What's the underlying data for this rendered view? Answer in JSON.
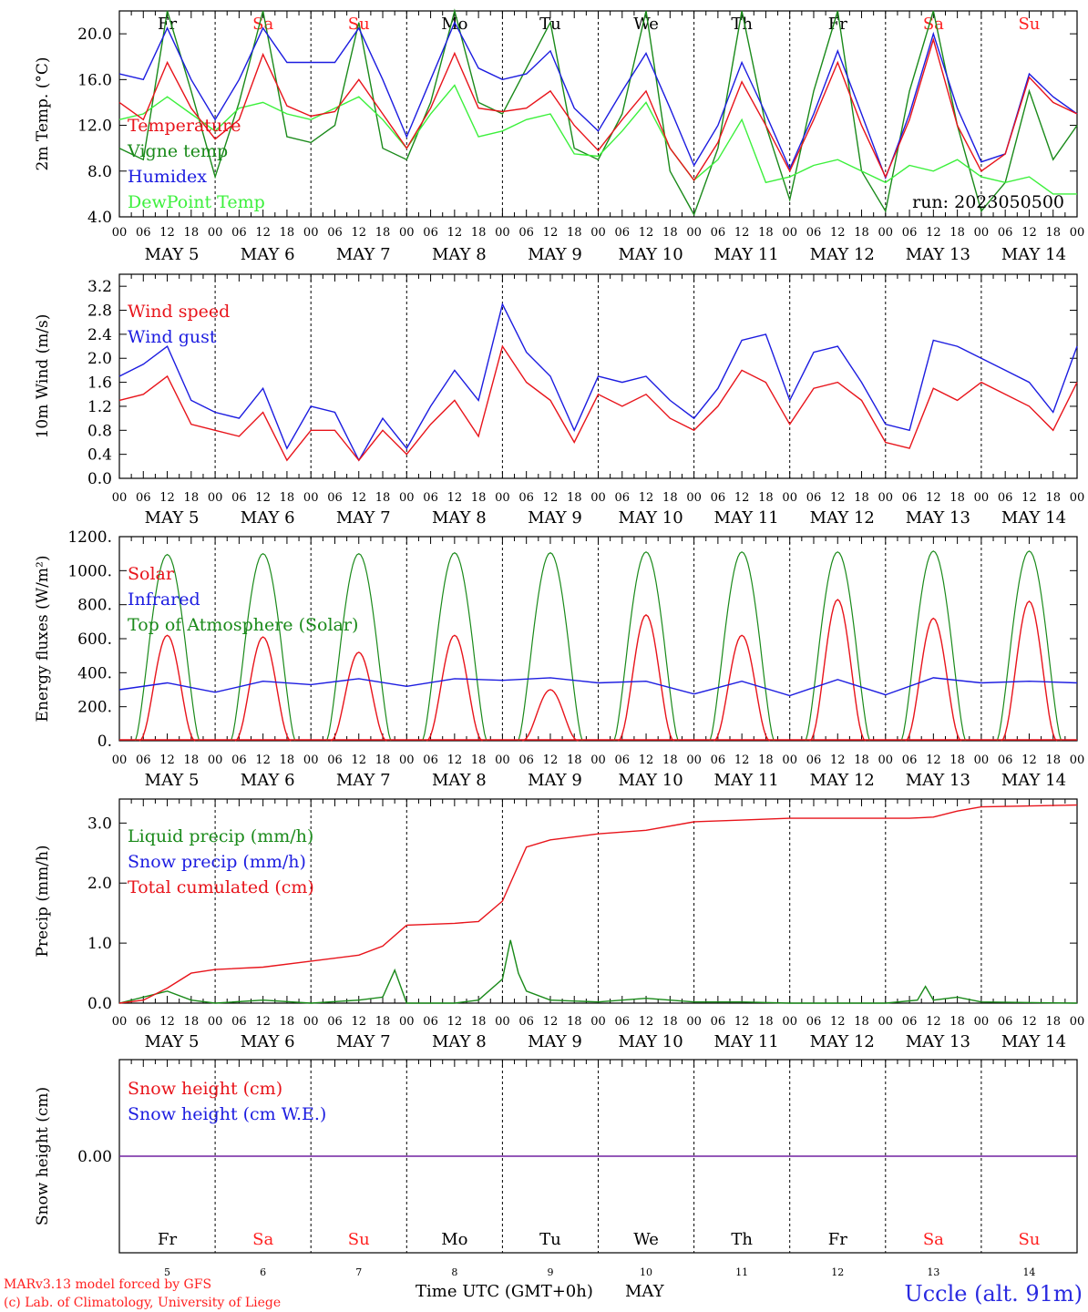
{
  "run_label": "run: 2023050500",
  "station": "Uccle (alt. 91m)",
  "credit": [
    "MARv3.13 model forced by GFS",
    "(c) Lab. of Climatology, University of Liege"
  ],
  "xaxis_title": "Time UTC (GMT+0h)",
  "month": "MAY",
  "hour_ticks": [
    "00",
    "06",
    "12",
    "18"
  ],
  "last_tick": "00",
  "days": [
    "5",
    "6",
    "7",
    "8",
    "9",
    "10",
    "11",
    "12",
    "13",
    "14"
  ],
  "day_labels": [
    "MAY  5",
    "MAY  6",
    "MAY  7",
    "MAY  8",
    "MAY  9",
    "MAY 10",
    "MAY 11",
    "MAY 12",
    "MAY 13",
    "MAY 14"
  ],
  "weekdays": [
    "Fr",
    "Sa",
    "Su",
    "Mo",
    "Tu",
    "We",
    "Th",
    "Fr",
    "Sa",
    "Su"
  ],
  "weekend_color": "#ff2020",
  "weekday_color": "#000000",
  "colors": {
    "red": "#e8141b",
    "green": "#1a8a1a",
    "blue": "#1c1ce0",
    "lightgreen": "#3cf03c",
    "purple": "#7020a0",
    "station": "#2a2ae0"
  },
  "chart_data": [
    {
      "type": "line",
      "ylabel": "2m Temp. (°C)",
      "ylim": [
        4,
        22
      ],
      "yticks": [
        "4.0",
        "8.0",
        "12.0",
        "16.0",
        "20.0"
      ],
      "legend": [
        "Temperature",
        "Vigne temp",
        "Humidex",
        "DewPoint Temp"
      ],
      "series": [
        {
          "name": "Temperature",
          "color": "red",
          "x": [
            0,
            6,
            12,
            18,
            24,
            30,
            36,
            42,
            48,
            54,
            60,
            66,
            72,
            78,
            84,
            90,
            96,
            102,
            108,
            114,
            120,
            126,
            132,
            138,
            144,
            150,
            156,
            162,
            168,
            174,
            180,
            186,
            192,
            198,
            204,
            210,
            216,
            222,
            228,
            234,
            240
          ],
          "values": [
            14,
            12.5,
            17.5,
            13.5,
            10.8,
            12.5,
            18.2,
            13.7,
            12.8,
            13.2,
            16.0,
            13.0,
            10.0,
            13.5,
            18.3,
            13.5,
            13.2,
            13.5,
            15.0,
            12.0,
            9.8,
            12.5,
            15.0,
            10.0,
            7.2,
            10.5,
            15.8,
            12.0,
            8.0,
            12.5,
            17.5,
            12.0,
            7.5,
            12.5,
            19.5,
            12.0,
            8.0,
            9.5,
            16.2,
            14.0,
            13.0
          ]
        },
        {
          "name": "Vigne temp",
          "color": "green",
          "x": [
            0,
            6,
            12,
            18,
            24,
            30,
            36,
            42,
            48,
            54,
            60,
            66,
            72,
            78,
            84,
            90,
            96,
            102,
            108,
            114,
            120,
            126,
            132,
            138,
            144,
            150,
            156,
            162,
            168,
            174,
            180,
            186,
            192,
            198,
            204,
            210,
            216,
            222,
            228,
            234,
            240
          ],
          "values": [
            10,
            9,
            22,
            15,
            7.5,
            14,
            22,
            11,
            10.5,
            12,
            21,
            10,
            9,
            14,
            22,
            14,
            13,
            17,
            21,
            10,
            9,
            13,
            22,
            8,
            4.2,
            10,
            22,
            12,
            5.5,
            15,
            22,
            8,
            4.5,
            15,
            22,
            12,
            4.5,
            7,
            15,
            9,
            12
          ]
        },
        {
          "name": "Humidex",
          "color": "blue",
          "x": [
            0,
            6,
            12,
            18,
            24,
            30,
            36,
            42,
            48,
            54,
            60,
            66,
            72,
            78,
            84,
            90,
            96,
            102,
            108,
            114,
            120,
            126,
            132,
            138,
            144,
            150,
            156,
            162,
            168,
            174,
            180,
            186,
            192,
            198,
            204,
            210,
            216,
            222,
            228,
            234,
            240
          ],
          "values": [
            16.5,
            16.0,
            20.5,
            16.0,
            12.5,
            16.0,
            20.5,
            17.5,
            17.5,
            17.5,
            20.5,
            16.0,
            11.0,
            16.0,
            21.0,
            17.0,
            16.0,
            16.5,
            18.5,
            13.5,
            11.5,
            15.0,
            18.3,
            13.5,
            8.5,
            12.0,
            17.5,
            13.0,
            8.2,
            13.0,
            18.5,
            13.0,
            7.4,
            13.0,
            20.0,
            13.5,
            8.8,
            9.5,
            16.5,
            14.5,
            13.0
          ]
        },
        {
          "name": "DewPoint Temp",
          "color": "lightgreen",
          "x": [
            0,
            6,
            12,
            18,
            24,
            30,
            36,
            42,
            48,
            54,
            60,
            66,
            72,
            78,
            84,
            90,
            96,
            102,
            108,
            114,
            120,
            126,
            132,
            138,
            144,
            150,
            156,
            162,
            168,
            174,
            180,
            186,
            192,
            198,
            204,
            210,
            216,
            222,
            228,
            234,
            240
          ],
          "values": [
            12.5,
            13.0,
            14.5,
            13.0,
            11.5,
            13.5,
            14.0,
            13.0,
            12.5,
            13.5,
            14.5,
            12.5,
            10.0,
            13.0,
            15.5,
            11.0,
            11.5,
            12.5,
            13.0,
            9.5,
            9.3,
            11.5,
            14.0,
            10.0,
            7.2,
            9.0,
            12.5,
            7.0,
            7.5,
            8.5,
            9.0,
            8.0,
            7.0,
            8.5,
            8.0,
            9.0,
            7.5,
            7.0,
            7.5,
            6.0,
            6.0
          ]
        }
      ]
    },
    {
      "type": "line",
      "ylabel": "10m Wind (m/s)",
      "ylim": [
        0,
        3.4
      ],
      "yticks": [
        "0.0",
        "0.4",
        "0.8",
        "1.2",
        "1.6",
        "2.0",
        "2.4",
        "2.8",
        "3.2"
      ],
      "legend": [
        "Wind speed",
        "Wind gust"
      ],
      "series": [
        {
          "name": "Wind speed",
          "color": "red",
          "x": [
            0,
            6,
            12,
            18,
            24,
            30,
            36,
            42,
            48,
            54,
            60,
            66,
            72,
            78,
            84,
            90,
            96,
            102,
            108,
            114,
            120,
            126,
            132,
            138,
            144,
            150,
            156,
            162,
            168,
            174,
            180,
            186,
            192,
            198,
            204,
            210,
            216,
            222,
            228,
            234,
            240
          ],
          "values": [
            1.3,
            1.4,
            1.7,
            0.9,
            0.8,
            0.7,
            1.1,
            0.3,
            0.8,
            0.8,
            0.3,
            0.8,
            0.4,
            0.9,
            1.3,
            0.7,
            2.2,
            1.6,
            1.3,
            0.6,
            1.4,
            1.2,
            1.4,
            1.0,
            0.8,
            1.2,
            1.8,
            1.6,
            0.9,
            1.5,
            1.6,
            1.3,
            0.6,
            0.5,
            1.5,
            1.3,
            1.6,
            1.4,
            1.2,
            0.8,
            1.6
          ]
        },
        {
          "name": "Wind gust",
          "color": "blue",
          "x": [
            0,
            6,
            12,
            18,
            24,
            30,
            36,
            42,
            48,
            54,
            60,
            66,
            72,
            78,
            84,
            90,
            96,
            102,
            108,
            114,
            120,
            126,
            132,
            138,
            144,
            150,
            156,
            162,
            168,
            174,
            180,
            186,
            192,
            198,
            204,
            210,
            216,
            222,
            228,
            234,
            240
          ],
          "values": [
            1.7,
            1.9,
            2.2,
            1.3,
            1.1,
            1.0,
            1.5,
            0.5,
            1.2,
            1.1,
            0.3,
            1.0,
            0.5,
            1.2,
            1.8,
            1.3,
            2.9,
            2.1,
            1.7,
            0.8,
            1.7,
            1.6,
            1.7,
            1.3,
            1.0,
            1.5,
            2.3,
            2.4,
            1.3,
            2.1,
            2.2,
            1.6,
            0.9,
            0.8,
            2.3,
            2.2,
            2.0,
            1.8,
            1.6,
            1.1,
            2.2
          ]
        }
      ]
    },
    {
      "type": "line",
      "ylabel": "Energy fluxes (W/m²)",
      "ylim": [
        0,
        1200
      ],
      "yticks": [
        "0.",
        "200.",
        "400.",
        "600.",
        "800.",
        "1000.",
        "1200."
      ],
      "legend": [
        "Solar",
        "Infrared",
        "Top of Atmosphere (Solar)"
      ],
      "toa_peak": [
        1095,
        1100,
        1100,
        1105,
        1105,
        1110,
        1110,
        1110,
        1115,
        1115
      ],
      "solar_peak": [
        620,
        610,
        520,
        620,
        300,
        740,
        620,
        830,
        720,
        820
      ],
      "series": [
        {
          "name": "Infrared",
          "color": "blue",
          "x": [
            0,
            12,
            24,
            36,
            48,
            60,
            72,
            84,
            96,
            108,
            120,
            132,
            144,
            156,
            168,
            180,
            192,
            204,
            216,
            228,
            240
          ],
          "values": [
            300,
            340,
            285,
            350,
            330,
            365,
            320,
            365,
            355,
            370,
            340,
            350,
            275,
            350,
            265,
            360,
            270,
            370,
            340,
            350,
            340
          ]
        }
      ]
    },
    {
      "type": "line",
      "ylabel": "Precip (mm/h)",
      "ylim": [
        0,
        3.4
      ],
      "yticks": [
        "0.0",
        "1.0",
        "2.0",
        "3.0"
      ],
      "legend": [
        "Liquid precip (mm/h)",
        "Snow precip (mm/h)",
        "Total cumulated (cm)"
      ],
      "series": [
        {
          "name": "Total cumulated (cm)",
          "color": "red",
          "x": [
            0,
            6,
            12,
            18,
            24,
            36,
            48,
            60,
            66,
            72,
            84,
            90,
            96,
            102,
            108,
            120,
            132,
            144,
            156,
            168,
            180,
            192,
            198,
            204,
            210,
            216,
            240
          ],
          "values": [
            0.0,
            0.05,
            0.25,
            0.5,
            0.56,
            0.6,
            0.7,
            0.8,
            0.95,
            1.3,
            1.33,
            1.36,
            1.7,
            2.6,
            2.72,
            2.82,
            2.88,
            3.02,
            3.05,
            3.08,
            3.08,
            3.08,
            3.08,
            3.1,
            3.2,
            3.27,
            3.3
          ]
        },
        {
          "name": "Liquid precip (mm/h)",
          "color": "green",
          "x": [
            0,
            6,
            12,
            18,
            24,
            36,
            48,
            60,
            66,
            69,
            72,
            84,
            90,
            96,
            98,
            100,
            102,
            108,
            120,
            132,
            144,
            156,
            168,
            180,
            192,
            200,
            202,
            204,
            210,
            216,
            240
          ],
          "values": [
            0,
            0.1,
            0.2,
            0.05,
            0,
            0.05,
            0,
            0.05,
            0.1,
            0.55,
            0,
            0,
            0.05,
            0.4,
            1.05,
            0.5,
            0.2,
            0.05,
            0.02,
            0.08,
            0.02,
            0.02,
            0,
            0,
            0,
            0.05,
            0.28,
            0.05,
            0.1,
            0.02,
            0
          ]
        }
      ]
    },
    {
      "type": "line",
      "ylabel": "Snow height (cm)",
      "ylim": [
        -1,
        1
      ],
      "yticks": [
        "0.00"
      ],
      "legend": [
        "Snow height (cm)",
        "Snow height (cm W.E.)"
      ],
      "series": [
        {
          "name": "Snow height (cm)",
          "color": "red",
          "x": [
            0,
            240
          ],
          "values": [
            0,
            0
          ]
        },
        {
          "name": "Snow height (cm W.E.)",
          "color": "blue",
          "x": [
            0,
            240
          ],
          "values": [
            0,
            0
          ]
        }
      ]
    }
  ]
}
